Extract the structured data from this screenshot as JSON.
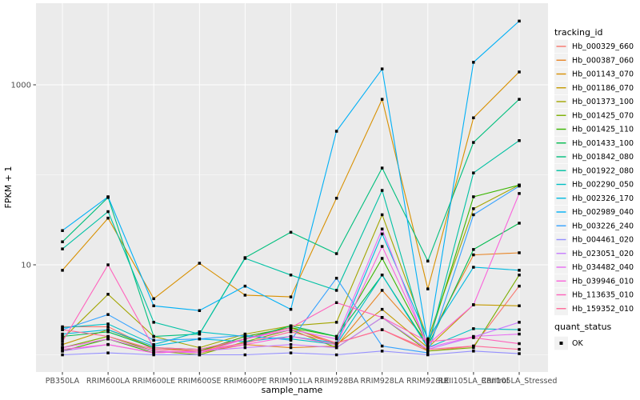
{
  "figure": {
    "background": "#FFFFFF",
    "panel_background": "#EBEBEB",
    "gridline_color": "#FFFFFF",
    "tick_label_color": "#4D4D4D",
    "axis_title_color": "#000000",
    "point_color": "#000000",
    "legend_key_fill": "#F2F2F2"
  },
  "chart_data": {
    "type": "line",
    "x_type": "categorical",
    "y_scale": "log10",
    "title": "",
    "xlabel": "sample_name",
    "ylabel": "FPKM + 1",
    "grid": true,
    "legend_position": "right",
    "y_ticks": [
      {
        "value": 10,
        "label": "10"
      },
      {
        "value": 1000,
        "label": "1000"
      }
    ],
    "y_minor_breaks": [
      1,
      100
    ],
    "ylim_approx": [
      0.65,
      7000
    ],
    "categories": [
      "PB350LA",
      "RRIM600LA",
      "RRIM600LE",
      "RRIM600SE",
      "RRIM600PE",
      "RRIM901LA",
      "RRIM928BA",
      "RRIM928LA",
      "RRIM928LE",
      "RRII105LA_Control",
      "RRII105LA_Stressed"
    ],
    "series": [
      {
        "name": "Hb_000329_660",
        "color": "#F8766D",
        "values": [
          2.05,
          2.05,
          1.15,
          1.1,
          1.6,
          2.0,
          1.35,
          1.9,
          1.1,
          1.25,
          5.8
        ]
      },
      {
        "name": "Hb_000387_060",
        "color": "#E88526",
        "values": [
          1.2,
          1.5,
          1.1,
          1.05,
          1.3,
          1.2,
          1.25,
          5.2,
          1.4,
          12.9,
          13.6
        ]
      },
      {
        "name": "Hb_001143_070",
        "color": "#D89000",
        "values": [
          8.7,
          33,
          4.2,
          10.4,
          4.6,
          4.4,
          55,
          690,
          5.4,
          430,
          1390
        ]
      },
      {
        "name": "Hb_001186_070",
        "color": "#C49A00",
        "values": [
          1.3,
          1.9,
          1.2,
          1.1,
          1.5,
          2.0,
          1.3,
          3.2,
          1.2,
          3.6,
          3.5
        ]
      },
      {
        "name": "Hb_001373_100",
        "color": "#A3A500",
        "values": [
          1.5,
          4.7,
          1.6,
          1.2,
          1.7,
          2.1,
          2.3,
          36,
          1.5,
          42,
          77
        ]
      },
      {
        "name": "Hb_001425_070",
        "color": "#7CAE00",
        "values": [
          1.2,
          1.6,
          1.1,
          1.0,
          1.4,
          1.9,
          1.2,
          2.6,
          1.1,
          1.2,
          7.7
        ]
      },
      {
        "name": "Hb_001425_110",
        "color": "#39B600",
        "values": [
          1.1,
          1.5,
          1.05,
          1.1,
          1.6,
          2.0,
          1.6,
          11.8,
          1.3,
          57,
          77
        ]
      },
      {
        "name": "Hb_001433_100",
        "color": "#00BB4E",
        "values": [
          1.6,
          1.8,
          1.2,
          1.15,
          1.5,
          2.1,
          1.6,
          7.7,
          1.25,
          14.8,
          29
        ]
      },
      {
        "name": "Hb_001842_080",
        "color": "#00BF7D",
        "values": [
          18,
          56,
          1.6,
          1.7,
          12,
          23,
          13.3,
          119,
          11,
          229,
          690
        ]
      },
      {
        "name": "Hb_001922_080",
        "color": "#00C1A3",
        "values": [
          15,
          39,
          2.3,
          1.7,
          11.8,
          7.7,
          5.2,
          67,
          1.2,
          105,
          240
        ]
      },
      {
        "name": "Hb_002290_050",
        "color": "#00BFC4",
        "values": [
          2.0,
          2.2,
          1.3,
          1.8,
          1.6,
          1.5,
          1.3,
          7.7,
          1.2,
          1.95,
          1.9
        ]
      },
      {
        "name": "Hb_002326_170",
        "color": "#00BAE0",
        "values": [
          1.7,
          1.9,
          1.25,
          1.5,
          1.4,
          1.6,
          1.35,
          22,
          1.5,
          9.4,
          8.7
        ]
      },
      {
        "name": "Hb_002989_040",
        "color": "#00B0F6",
        "values": [
          24,
          57,
          3.5,
          3.1,
          5.8,
          3.2,
          305,
          1500,
          1.35,
          1780,
          5100
        ]
      },
      {
        "name": "Hb_003226_240",
        "color": "#35A2FF",
        "values": [
          1.9,
          2.8,
          1.45,
          1.5,
          1.65,
          1.45,
          7.1,
          1.25,
          1.05,
          36,
          75
        ]
      },
      {
        "name": "Hb_004461_020",
        "color": "#9590FF",
        "values": [
          1.0,
          1.05,
          1.0,
          1.0,
          1.0,
          1.05,
          1.0,
          1.1,
          1.0,
          1.1,
          1.03
        ]
      },
      {
        "name": "Hb_023051_020",
        "color": "#C77CFF",
        "values": [
          1.1,
          1.3,
          1.05,
          1.1,
          1.2,
          1.3,
          1.2,
          2.6,
          1.15,
          1.58,
          2.3
        ]
      },
      {
        "name": "Hb_034482_040",
        "color": "#E76BF3",
        "values": [
          1.2,
          1.5,
          1.1,
          1.05,
          1.5,
          1.9,
          1.5,
          25,
          1.2,
          1.6,
          1.7
        ]
      },
      {
        "name": "Hb_039946_010",
        "color": "#FA62DB",
        "values": [
          1.15,
          1.3,
          1.05,
          1.1,
          1.3,
          1.6,
          1.3,
          16,
          1.3,
          3.6,
          62
        ]
      },
      {
        "name": "Hb_113635_010",
        "color": "#FF62BC",
        "values": [
          1.4,
          10,
          1.2,
          1.15,
          1.5,
          2.0,
          3.8,
          2.6,
          1.4,
          1.55,
          1.33
        ]
      },
      {
        "name": "Hb_159352_010",
        "color": "#FF6A98",
        "values": [
          1.9,
          1.6,
          1.15,
          1.1,
          1.35,
          1.8,
          1.35,
          1.9,
          1.15,
          1.25,
          1.15
        ]
      }
    ],
    "legend": {
      "title": "tracking_id"
    },
    "legend2": {
      "title": "quant_status",
      "items": [
        {
          "label": "OK"
        }
      ]
    }
  }
}
